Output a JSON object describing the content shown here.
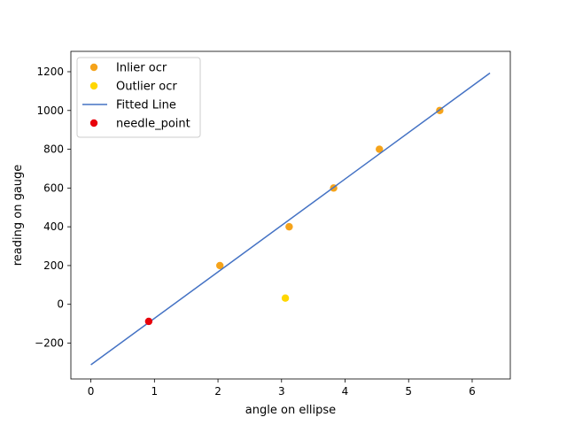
{
  "chart_data": {
    "type": "scatter",
    "xlabel": "angle on ellipse",
    "ylabel": "reading on gauge",
    "xlim": [
      -0.315,
      6.6
    ],
    "ylim": [
      -385,
      1305
    ],
    "x_ticks": [
      0,
      1,
      2,
      3,
      4,
      5,
      6
    ],
    "y_ticks": [
      -200,
      0,
      200,
      400,
      600,
      800,
      1000,
      1200
    ],
    "legend_position": "upper-left",
    "grid": false,
    "series": [
      {
        "name": "Inlier ocr",
        "kind": "scatter",
        "color": "#f5a31a",
        "points": [
          {
            "x": 2.03,
            "y": 200
          },
          {
            "x": 3.12,
            "y": 400
          },
          {
            "x": 3.82,
            "y": 600
          },
          {
            "x": 4.54,
            "y": 800
          },
          {
            "x": 5.49,
            "y": 1000
          }
        ]
      },
      {
        "name": "Outlier ocr",
        "kind": "scatter",
        "color": "#ffd700",
        "points": [
          {
            "x": 3.06,
            "y": 32
          }
        ]
      },
      {
        "name": "Fitted Line",
        "kind": "line",
        "color": "#4472c4",
        "points": [
          {
            "x": 0.0,
            "y": -312
          },
          {
            "x": 6.28,
            "y": 1193
          }
        ]
      },
      {
        "name": "needle_point",
        "kind": "scatter",
        "color": "#e8000b",
        "points": [
          {
            "x": 0.91,
            "y": -88
          }
        ]
      }
    ]
  }
}
